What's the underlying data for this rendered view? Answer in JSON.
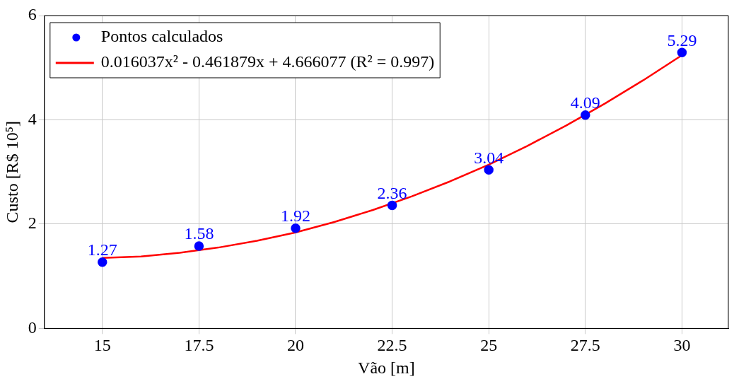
{
  "chart_data": {
    "type": "scatter",
    "xlabel": "Vão [m]",
    "ylabel": "Custo [R$ 10⁵]",
    "xlim": [
      13.5,
      31.2
    ],
    "xticks": [
      15,
      17.5,
      20,
      22.5,
      25,
      27.5,
      30
    ],
    "ylim": [
      0,
      6
    ],
    "yticks": [
      0,
      2,
      4,
      6
    ],
    "grid": true,
    "legend": "top left",
    "series": [
      {
        "name": "Pontos calculados",
        "color": "#0000ff",
        "marker": "circle",
        "x": [
          15,
          17.5,
          20,
          22.5,
          25,
          27.5,
          30
        ],
        "values": [
          1.27,
          1.58,
          1.92,
          2.36,
          3.04,
          4.09,
          5.29
        ],
        "value_labels": [
          "1.27",
          "1.58",
          "1.92",
          "2.36",
          "3.04",
          "4.09",
          "5.29"
        ]
      },
      {
        "name": "0.016037x² - 0.461879x + 4.666077 (R² = 0.997)",
        "type": "line",
        "color": "#ff0000",
        "marker": "none",
        "line_style": "solid",
        "x": [
          15,
          16,
          17,
          18,
          19,
          20,
          21,
          22,
          23,
          24,
          25,
          26,
          27,
          28,
          29,
          30
        ],
        "values": [
          1.35,
          1.38,
          1.45,
          1.55,
          1.68,
          1.84,
          2.04,
          2.27,
          2.53,
          2.82,
          3.14,
          3.5,
          3.89,
          4.31,
          4.76,
          5.24
        ]
      }
    ]
  }
}
